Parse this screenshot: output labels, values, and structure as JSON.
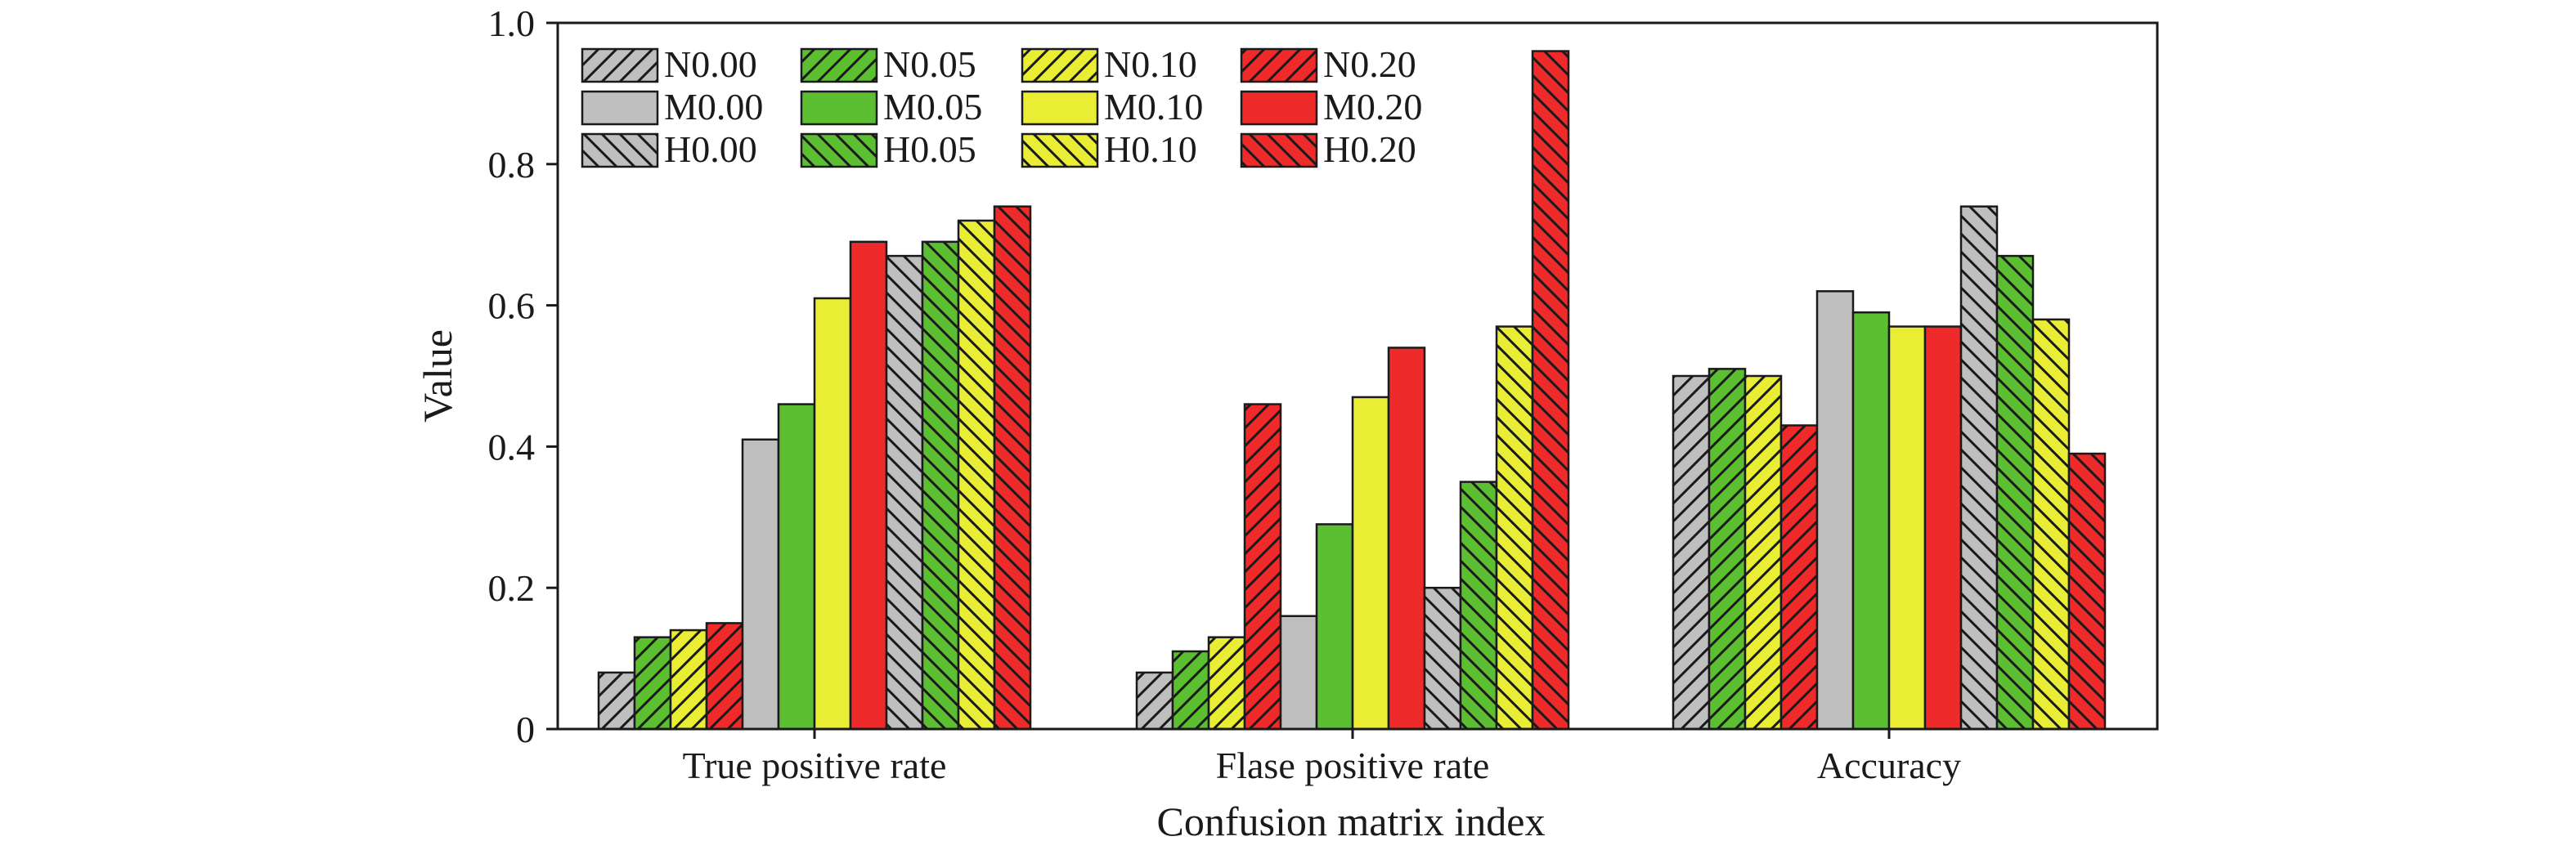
{
  "chart_data": {
    "type": "bar",
    "xlabel": "Confusion matrix index",
    "ylabel": "Value",
    "ylim": [
      0,
      1.0
    ],
    "yticks": [
      "0",
      "0.2",
      "0.4",
      "0.6",
      "0.8",
      "1.0"
    ],
    "ytick_values": [
      0,
      0.2,
      0.4,
      0.6,
      0.8,
      1.0
    ],
    "grid": false,
    "legend_position": "top-left",
    "categories": [
      "True positive rate",
      "Flase positive rate",
      "Accuracy"
    ],
    "series": [
      {
        "name": "N0.00",
        "color": "#bfbfbf",
        "pattern": "diagonal",
        "values": [
          0.08,
          0.08,
          0.5
        ]
      },
      {
        "name": "N0.05",
        "color": "#5cbf32",
        "pattern": "diagonal",
        "values": [
          0.13,
          0.11,
          0.51
        ]
      },
      {
        "name": "N0.10",
        "color": "#e9ee34",
        "pattern": "diagonal",
        "values": [
          0.14,
          0.13,
          0.5
        ]
      },
      {
        "name": "N0.20",
        "color": "#ee2a2a",
        "pattern": "diagonal",
        "values": [
          0.15,
          0.46,
          0.43
        ]
      },
      {
        "name": "M0.00",
        "color": "#bfbfbf",
        "pattern": "solid",
        "values": [
          0.41,
          0.16,
          0.62
        ]
      },
      {
        "name": "M0.05",
        "color": "#5cbf32",
        "pattern": "solid",
        "values": [
          0.46,
          0.29,
          0.59
        ]
      },
      {
        "name": "M0.10",
        "color": "#e9ee34",
        "pattern": "solid",
        "values": [
          0.61,
          0.47,
          0.57
        ]
      },
      {
        "name": "M0.20",
        "color": "#ee2a2a",
        "pattern": "solid",
        "values": [
          0.69,
          0.54,
          0.57
        ]
      },
      {
        "name": "H0.00",
        "color": "#bfbfbf",
        "pattern": "backdiagonal",
        "values": [
          0.67,
          0.2,
          0.74
        ]
      },
      {
        "name": "H0.05",
        "color": "#5cbf32",
        "pattern": "backdiagonal",
        "values": [
          0.69,
          0.35,
          0.67
        ]
      },
      {
        "name": "H0.10",
        "color": "#e9ee34",
        "pattern": "backdiagonal",
        "values": [
          0.72,
          0.57,
          0.58
        ]
      },
      {
        "name": "H0.20",
        "color": "#ee2a2a",
        "pattern": "backdiagonal",
        "values": [
          0.74,
          0.96,
          0.39
        ]
      }
    ]
  }
}
